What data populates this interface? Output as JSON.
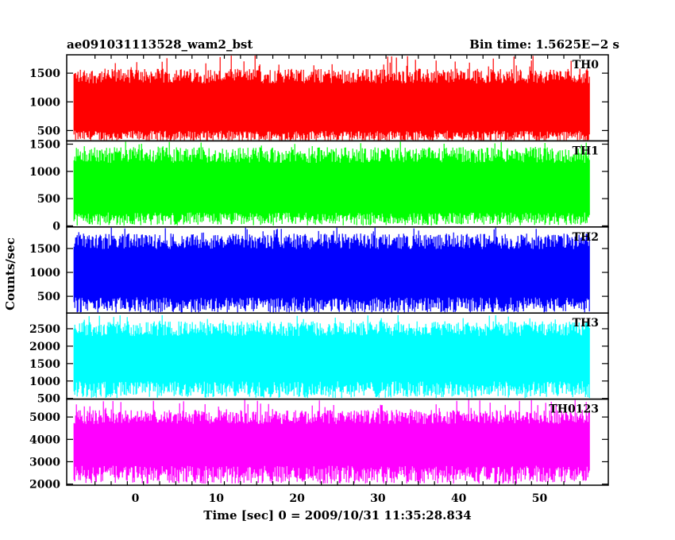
{
  "header": {
    "left_title": "ae091031113528_wam2_bst",
    "right_title": "Bin time: 1.5625E−2 s"
  },
  "chart_data": {
    "type": "line",
    "title": "ae091031113528_wam2_bst",
    "subtitle": "Bin time: 1.5625E−2 s",
    "xlabel": "Time [sec] 0 = 2009/10/31 11:35:28.834",
    "ylabel": "Counts/sec",
    "xlim": [
      -8.5,
      58.5
    ],
    "data_x_range": [
      -7.6,
      56.2
    ],
    "x_ticks": [
      0,
      10,
      20,
      30,
      40,
      50
    ],
    "bin_time_s": 0.015625,
    "grid": false,
    "legend": "none",
    "panels": [
      {
        "name": "TH0",
        "color": "#ff0000",
        "ylim": [
          320,
          1820
        ],
        "y_ticks": [
          500,
          1000,
          1500
        ],
        "typical_low": 420,
        "typical_high": 1450,
        "observed_min": 300,
        "observed_max": 1820
      },
      {
        "name": "TH1",
        "color": "#00ff00",
        "ylim": [
          -20,
          1560
        ],
        "y_ticks": [
          0,
          500,
          1000,
          1500
        ],
        "typical_low": 150,
        "typical_high": 1300,
        "observed_min": 0,
        "observed_max": 1560
      },
      {
        "name": "TH2",
        "color": "#0000ff",
        "ylim": [
          150,
          1950
        ],
        "y_ticks": [
          500,
          1000,
          1500
        ],
        "typical_low": 350,
        "typical_high": 1650,
        "observed_min": 150,
        "observed_max": 1950
      },
      {
        "name": "TH3",
        "color": "#00ffff",
        "ylim": [
          480,
          2950
        ],
        "y_ticks": [
          500,
          1000,
          1500,
          2000,
          2500
        ],
        "typical_low": 800,
        "typical_high": 2500,
        "observed_min": 500,
        "observed_max": 2900
      },
      {
        "name": "TH0123",
        "color": "#ff00ff",
        "ylim": [
          1950,
          5800
        ],
        "y_ticks": [
          2000,
          3000,
          4000,
          5000
        ],
        "typical_low": 2500,
        "typical_high": 5000,
        "observed_min": 2000,
        "observed_max": 5800
      }
    ]
  }
}
